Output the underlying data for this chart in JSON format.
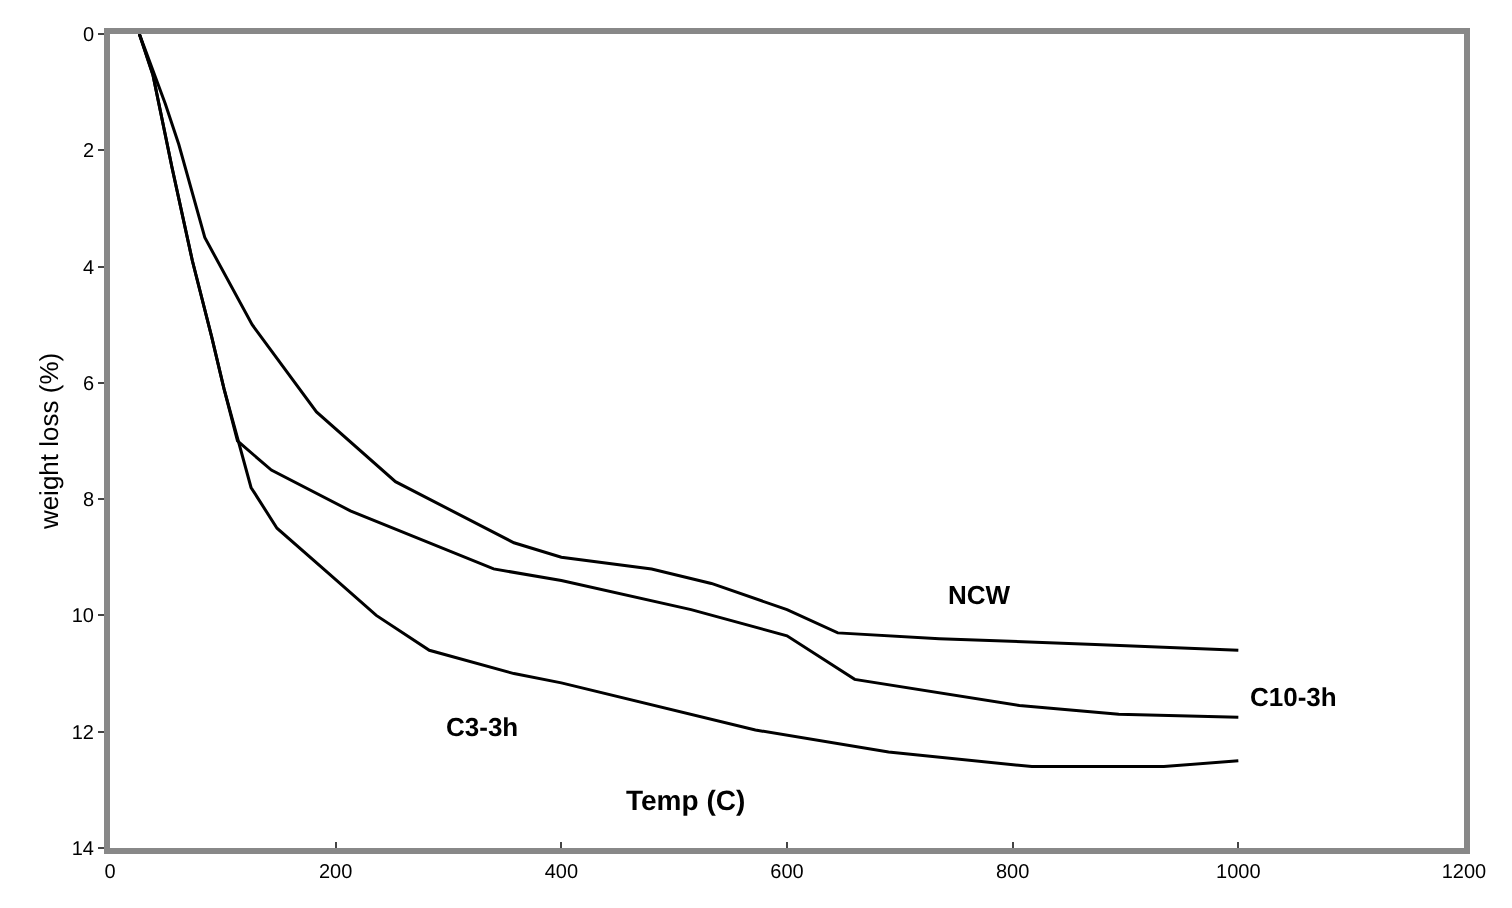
{
  "chart_data": {
    "type": "line",
    "xlabel": "Temp (C)",
    "ylabel": "weight loss (%)",
    "xlim": [
      0,
      1200
    ],
    "xticks": [
      0,
      200,
      400,
      600,
      800,
      1000,
      1200
    ],
    "ylim": [
      14,
      0
    ],
    "yticks": [
      0,
      2,
      4,
      6,
      8,
      10,
      12,
      14
    ],
    "grid": false,
    "legend": false,
    "line_style": "solid",
    "marker": "none",
    "series": [
      {
        "name": "NCW",
        "color": "#000000",
        "x": [
          26,
          31,
          49,
          61,
          84,
          126,
          183,
          253,
          358,
          400,
          480,
          533,
          600,
          645,
          735,
          873,
          1000
        ],
        "values": [
          0,
          0.26,
          1.2,
          1.9,
          3.5,
          5.0,
          6.5,
          7.7,
          8.75,
          9.0,
          9.2,
          9.45,
          9.9,
          10.3,
          10.4,
          10.5,
          10.6
        ]
      },
      {
        "name": "C10-3h",
        "color": "#000000",
        "x": [
          26,
          38,
          55,
          73,
          90,
          101,
          113,
          143,
          213,
          340,
          400,
          515,
          600,
          660,
          806,
          894,
          1000
        ],
        "values": [
          0,
          0.7,
          2.3,
          3.9,
          5.2,
          6.1,
          7.0,
          7.5,
          8.2,
          9.2,
          9.4,
          9.9,
          10.35,
          11.1,
          11.55,
          11.7,
          11.75
        ]
      },
      {
        "name": "C3-3h",
        "color": "#000000",
        "x": [
          26,
          38,
          55,
          73,
          90,
          101,
          125,
          148,
          195,
          236,
          283,
          358,
          400,
          572,
          690,
          817,
          934,
          1000
        ],
        "values": [
          0,
          0.7,
          2.3,
          3.9,
          5.2,
          6.1,
          7.8,
          8.5,
          9.3,
          10.0,
          10.6,
          11.0,
          11.16,
          11.97,
          12.35,
          12.6,
          12.6,
          12.5
        ]
      }
    ]
  }
}
